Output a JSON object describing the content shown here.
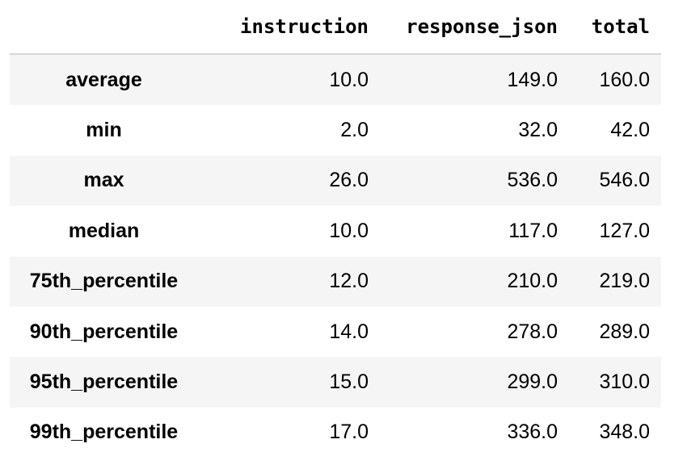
{
  "columns": [
    "instruction",
    "response_json",
    "total"
  ],
  "rows": [
    {
      "label": "average",
      "values": [
        "10.0",
        "149.0",
        "160.0"
      ]
    },
    {
      "label": "min",
      "values": [
        "2.0",
        "32.0",
        "42.0"
      ]
    },
    {
      "label": "max",
      "values": [
        "26.0",
        "536.0",
        "546.0"
      ]
    },
    {
      "label": "median",
      "values": [
        "10.0",
        "117.0",
        "127.0"
      ]
    },
    {
      "label": "75th_percentile",
      "values": [
        "12.0",
        "210.0",
        "219.0"
      ]
    },
    {
      "label": "90th_percentile",
      "values": [
        "14.0",
        "278.0",
        "289.0"
      ]
    },
    {
      "label": "95th_percentile",
      "values": [
        "15.0",
        "299.0",
        "310.0"
      ]
    },
    {
      "label": "99th_percentile",
      "values": [
        "17.0",
        "336.0",
        "348.0"
      ]
    }
  ],
  "colors": {
    "striped_row": "#f5f5f5",
    "header_border": "#d6d6d6"
  }
}
